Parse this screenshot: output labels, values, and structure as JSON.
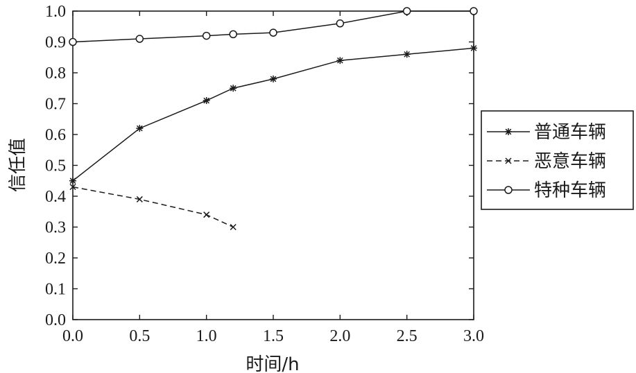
{
  "chart_data": {
    "type": "line",
    "xlabel": "时间/h",
    "ylabel": "信任值",
    "xlim": [
      0,
      3
    ],
    "ylim": [
      0,
      1
    ],
    "xticks": [
      "0.0",
      "0.5",
      "1.0",
      "1.5",
      "2.0",
      "2.5",
      "3.0"
    ],
    "yticks": [
      "0.0",
      "0.1",
      "0.2",
      "0.3",
      "0.4",
      "0.5",
      "0.6",
      "0.7",
      "0.8",
      "0.9",
      "1.0"
    ],
    "grid": false,
    "legend_position": "right",
    "series": [
      {
        "name": "普通车辆",
        "marker": "asterisk",
        "line_style": "solid",
        "x": [
          0.0,
          0.5,
          1.0,
          1.2,
          1.5,
          2.0,
          2.5,
          3.0
        ],
        "y": [
          0.45,
          0.62,
          0.71,
          0.75,
          0.78,
          0.84,
          0.86,
          0.88
        ]
      },
      {
        "name": "恶意车辆",
        "marker": "x",
        "line_style": "dashed",
        "x": [
          0.0,
          0.5,
          1.0,
          1.2
        ],
        "y": [
          0.43,
          0.39,
          0.34,
          0.3
        ]
      },
      {
        "name": "特种车辆",
        "marker": "circle",
        "line_style": "solid",
        "x": [
          0.0,
          0.5,
          1.0,
          1.2,
          1.5,
          2.0,
          2.5,
          3.0
        ],
        "y": [
          0.9,
          0.91,
          0.92,
          0.925,
          0.93,
          0.96,
          1.0,
          1.0
        ]
      }
    ]
  }
}
